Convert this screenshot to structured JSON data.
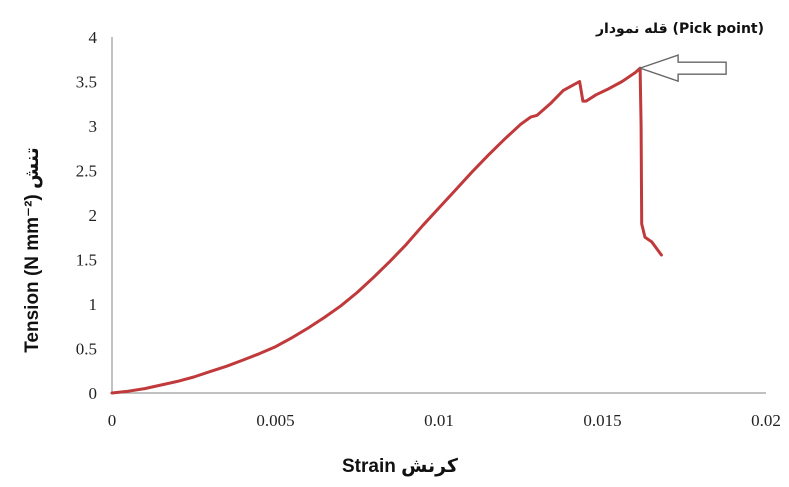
{
  "chart_data": {
    "type": "line",
    "xlabel": "Strain کرنش",
    "ylabel": "Tension (N mm⁻²) تنش",
    "xlim": [
      0,
      0.02
    ],
    "ylim": [
      0,
      4
    ],
    "x_ticks": [
      "0",
      "0.005",
      "0.01",
      "0.015",
      "0.02"
    ],
    "y_ticks": [
      "0",
      "0.5",
      "1",
      "1.5",
      "2",
      "2.5",
      "3",
      "3.5",
      "4"
    ],
    "grid": false,
    "legend": "none",
    "line_color": "#c0393b",
    "series": [
      {
        "x": [
          0,
          0.0005,
          0.001,
          0.0015,
          0.002,
          0.0025,
          0.003,
          0.0035,
          0.004,
          0.0045,
          0.005,
          0.0055,
          0.006,
          0.0065,
          0.007,
          0.0075,
          0.008,
          0.0085,
          0.009,
          0.0095,
          0.01,
          0.0105,
          0.011,
          0.0115,
          0.012,
          0.0125,
          0.0128,
          0.013,
          0.0134,
          0.0138,
          0.0141,
          0.0143,
          0.0144,
          0.0145,
          0.0148,
          0.0152,
          0.0156,
          0.016,
          0.01615,
          0.01618,
          0.0162,
          0.0163,
          0.0165,
          0.0168
        ],
        "y": [
          0,
          0.02,
          0.05,
          0.09,
          0.13,
          0.18,
          0.24,
          0.3,
          0.37,
          0.44,
          0.52,
          0.62,
          0.73,
          0.85,
          0.98,
          1.13,
          1.3,
          1.48,
          1.67,
          1.88,
          2.08,
          2.28,
          2.48,
          2.67,
          2.85,
          3.02,
          3.1,
          3.12,
          3.25,
          3.4,
          3.46,
          3.5,
          3.28,
          3.28,
          3.35,
          3.42,
          3.5,
          3.6,
          3.65,
          3.0,
          1.9,
          1.75,
          1.7,
          1.55
        ]
      }
    ],
    "annotations": [
      {
        "text": "قله نمودار (Pick point)",
        "x": 0.01615,
        "y": 3.65,
        "arrow": true
      }
    ]
  }
}
